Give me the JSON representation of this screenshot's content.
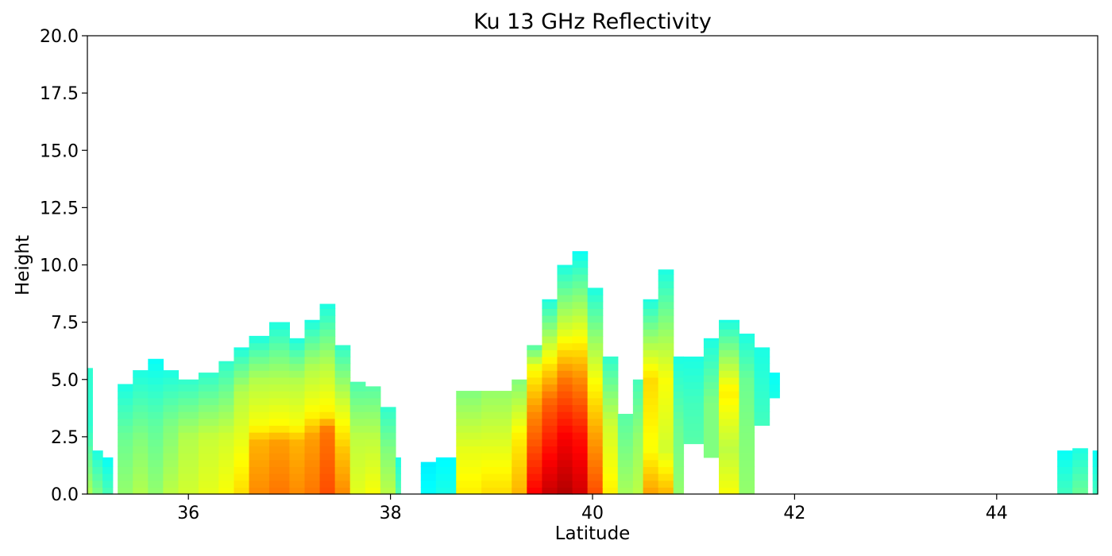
{
  "chart_data": {
    "type": "heatmap",
    "title": "Ku 13 GHz Reflectivity",
    "xlabel": "Latitude",
    "ylabel": "Height",
    "xlim": [
      35.0,
      45.0
    ],
    "ylim": [
      0.0,
      20.0
    ],
    "xticks": [
      36,
      38,
      40,
      42,
      44
    ],
    "xtick_labels": [
      "36",
      "38",
      "40",
      "42",
      "44"
    ],
    "yticks": [
      0.0,
      2.5,
      5.0,
      7.5,
      10.0,
      12.5,
      15.0,
      17.5,
      20.0
    ],
    "ytick_labels": [
      "0.0",
      "2.5",
      "5.0",
      "7.5",
      "10.0",
      "12.5",
      "15.0",
      "17.5",
      "20.0"
    ],
    "colormap": "jet",
    "grid": false,
    "legend": "none",
    "value_scale": "relative intensity 0-1 mapped to jet colormap (no colorbar shown)",
    "echo_columns": [
      {
        "lat_start": 35.0,
        "lat_end": 35.05,
        "top": 5.5,
        "intensity": [
          [
            0,
            0.55
          ],
          [
            1.0,
            0.5
          ],
          [
            3.0,
            0.42
          ]
        ]
      },
      {
        "lat_start": 35.05,
        "lat_end": 35.15,
        "top": 1.9,
        "intensity": [
          [
            0,
            0.5
          ],
          [
            1.9,
            0.4
          ]
        ]
      },
      {
        "lat_start": 35.15,
        "lat_end": 35.25,
        "top": 1.6,
        "intensity": [
          [
            0,
            0.45
          ],
          [
            1.6,
            0.38
          ]
        ]
      },
      {
        "lat_start": 35.3,
        "lat_end": 35.45,
        "top": 4.8,
        "intensity": [
          [
            0,
            0.52
          ],
          [
            2.5,
            0.48
          ],
          [
            4.8,
            0.4
          ]
        ]
      },
      {
        "lat_start": 35.45,
        "lat_end": 35.6,
        "top": 5.4,
        "intensity": [
          [
            0,
            0.55
          ],
          [
            2.5,
            0.5
          ],
          [
            5.4,
            0.4
          ]
        ]
      },
      {
        "lat_start": 35.6,
        "lat_end": 35.75,
        "top": 5.9,
        "intensity": [
          [
            0,
            0.52
          ],
          [
            3.0,
            0.47
          ],
          [
            5.9,
            0.38
          ]
        ]
      },
      {
        "lat_start": 35.75,
        "lat_end": 35.9,
        "top": 5.4,
        "intensity": [
          [
            0,
            0.56
          ],
          [
            3.0,
            0.5
          ],
          [
            5.4,
            0.4
          ]
        ]
      },
      {
        "lat_start": 35.9,
        "lat_end": 36.1,
        "top": 5.0,
        "intensity": [
          [
            0,
            0.58
          ],
          [
            2.5,
            0.55
          ],
          [
            5.0,
            0.42
          ]
        ]
      },
      {
        "lat_start": 36.1,
        "lat_end": 36.3,
        "top": 5.3,
        "intensity": [
          [
            0,
            0.6
          ],
          [
            2.5,
            0.57
          ],
          [
            5.3,
            0.42
          ]
        ]
      },
      {
        "lat_start": 36.3,
        "lat_end": 36.45,
        "top": 5.8,
        "intensity": [
          [
            0,
            0.62
          ],
          [
            2.5,
            0.58
          ],
          [
            5.8,
            0.42
          ]
        ]
      },
      {
        "lat_start": 36.45,
        "lat_end": 36.6,
        "top": 6.4,
        "intensity": [
          [
            0,
            0.66
          ],
          [
            2.5,
            0.6
          ],
          [
            4.5,
            0.55
          ],
          [
            6.4,
            0.4
          ]
        ]
      },
      {
        "lat_start": 36.6,
        "lat_end": 36.8,
        "top": 6.9,
        "intensity": [
          [
            0,
            0.74
          ],
          [
            2.3,
            0.7
          ],
          [
            3.0,
            0.62
          ],
          [
            5.0,
            0.55
          ],
          [
            6.9,
            0.4
          ]
        ]
      },
      {
        "lat_start": 36.8,
        "lat_end": 37.0,
        "top": 7.5,
        "intensity": [
          [
            0,
            0.76
          ],
          [
            2.3,
            0.72
          ],
          [
            3.0,
            0.63
          ],
          [
            5.0,
            0.55
          ],
          [
            7.5,
            0.4
          ]
        ]
      },
      {
        "lat_start": 37.0,
        "lat_end": 37.15,
        "top": 6.8,
        "intensity": [
          [
            0,
            0.74
          ],
          [
            2.3,
            0.7
          ],
          [
            3.0,
            0.62
          ],
          [
            5.0,
            0.55
          ],
          [
            6.8,
            0.4
          ]
        ]
      },
      {
        "lat_start": 37.15,
        "lat_end": 37.3,
        "top": 7.6,
        "intensity": [
          [
            0,
            0.76
          ],
          [
            2.5,
            0.72
          ],
          [
            3.5,
            0.63
          ],
          [
            5.5,
            0.55
          ],
          [
            7.6,
            0.4
          ]
        ]
      },
      {
        "lat_start": 37.3,
        "lat_end": 37.45,
        "top": 8.3,
        "intensity": [
          [
            0,
            0.8
          ],
          [
            2.8,
            0.76
          ],
          [
            3.5,
            0.64
          ],
          [
            5.5,
            0.56
          ],
          [
            8.3,
            0.4
          ]
        ]
      },
      {
        "lat_start": 37.45,
        "lat_end": 37.6,
        "top": 6.5,
        "intensity": [
          [
            0,
            0.74
          ],
          [
            2.0,
            0.68
          ],
          [
            4.0,
            0.58
          ],
          [
            6.5,
            0.42
          ]
        ]
      },
      {
        "lat_start": 37.6,
        "lat_end": 37.75,
        "top": 4.9,
        "intensity": [
          [
            0,
            0.6
          ],
          [
            2.5,
            0.56
          ],
          [
            4.9,
            0.45
          ]
        ]
      },
      {
        "lat_start": 37.75,
        "lat_end": 37.9,
        "top": 4.7,
        "intensity": [
          [
            0,
            0.62
          ],
          [
            2.5,
            0.56
          ],
          [
            4.7,
            0.46
          ]
        ]
      },
      {
        "lat_start": 37.9,
        "lat_end": 38.05,
        "top": 3.8,
        "intensity": [
          [
            0,
            0.56
          ],
          [
            2.0,
            0.5
          ],
          [
            3.8,
            0.42
          ]
        ]
      },
      {
        "lat_start": 38.05,
        "lat_end": 38.1,
        "top": 1.6,
        "intensity": [
          [
            0,
            0.46
          ],
          [
            1.6,
            0.4
          ]
        ]
      },
      {
        "lat_start": 38.3,
        "lat_end": 38.45,
        "top": 1.4,
        "intensity": [
          [
            0,
            0.38
          ],
          [
            1.4,
            0.36
          ]
        ]
      },
      {
        "lat_start": 38.45,
        "lat_end": 38.65,
        "top": 1.6,
        "intensity": [
          [
            0,
            0.4
          ],
          [
            1.6,
            0.37
          ]
        ]
      },
      {
        "lat_start": 38.65,
        "lat_end": 38.9,
        "top": 4.5,
        "intensity": [
          [
            0,
            0.64
          ],
          [
            2.0,
            0.6
          ],
          [
            4.5,
            0.5
          ]
        ]
      },
      {
        "lat_start": 38.9,
        "lat_end": 39.2,
        "top": 4.5,
        "intensity": [
          [
            0,
            0.66
          ],
          [
            2.0,
            0.6
          ],
          [
            4.5,
            0.52
          ]
        ]
      },
      {
        "lat_start": 39.2,
        "lat_end": 39.35,
        "top": 5.0,
        "intensity": [
          [
            0,
            0.7
          ],
          [
            2.5,
            0.64
          ],
          [
            5.0,
            0.5
          ]
        ]
      },
      {
        "lat_start": 39.35,
        "lat_end": 39.5,
        "top": 6.5,
        "intensity": [
          [
            0,
            0.88
          ],
          [
            1.5,
            0.82
          ],
          [
            3.5,
            0.74
          ],
          [
            5.5,
            0.62
          ],
          [
            6.5,
            0.45
          ]
        ]
      },
      {
        "lat_start": 39.5,
        "lat_end": 39.65,
        "top": 8.5,
        "intensity": [
          [
            0,
            0.93
          ],
          [
            2.0,
            0.86
          ],
          [
            4.0,
            0.78
          ],
          [
            6.0,
            0.62
          ],
          [
            8.5,
            0.4
          ]
        ]
      },
      {
        "lat_start": 39.65,
        "lat_end": 39.8,
        "top": 10.0,
        "intensity": [
          [
            0,
            0.95
          ],
          [
            2.5,
            0.88
          ],
          [
            5.0,
            0.76
          ],
          [
            7.0,
            0.6
          ],
          [
            10.0,
            0.4
          ]
        ]
      },
      {
        "lat_start": 39.8,
        "lat_end": 39.95,
        "top": 10.6,
        "intensity": [
          [
            0,
            0.92
          ],
          [
            2.5,
            0.86
          ],
          [
            5.0,
            0.74
          ],
          [
            7.5,
            0.58
          ],
          [
            10.6,
            0.38
          ]
        ]
      },
      {
        "lat_start": 39.95,
        "lat_end": 40.1,
        "top": 9.0,
        "intensity": [
          [
            0,
            0.8
          ],
          [
            2.5,
            0.72
          ],
          [
            5.0,
            0.62
          ],
          [
            9.0,
            0.4
          ]
        ]
      },
      {
        "lat_start": 40.1,
        "lat_end": 40.25,
        "top": 6.0,
        "intensity": [
          [
            0,
            0.64
          ],
          [
            3.0,
            0.58
          ],
          [
            6.0,
            0.42
          ]
        ]
      },
      {
        "lat_start": 40.25,
        "lat_end": 40.4,
        "top": 3.5,
        "intensity": [
          [
            0,
            0.54
          ],
          [
            3.5,
            0.46
          ]
        ]
      },
      {
        "lat_start": 40.4,
        "lat_end": 40.5,
        "top": 5.0,
        "intensity": [
          [
            0,
            0.56
          ],
          [
            2.5,
            0.52
          ],
          [
            5.0,
            0.44
          ]
        ]
      },
      {
        "lat_start": 40.5,
        "lat_end": 40.65,
        "top": 8.5,
        "intensity": [
          [
            0,
            0.72
          ],
          [
            2.0,
            0.62
          ],
          [
            5.0,
            0.66
          ],
          [
            8.5,
            0.4
          ]
        ]
      },
      {
        "lat_start": 40.65,
        "lat_end": 40.8,
        "top": 9.8,
        "intensity": [
          [
            0,
            0.7
          ],
          [
            2.0,
            0.58
          ],
          [
            5.0,
            0.62
          ],
          [
            9.8,
            0.4
          ]
        ]
      },
      {
        "lat_start": 40.8,
        "lat_end": 40.9,
        "top": 6.0,
        "intensity": [
          [
            0,
            0.52
          ],
          [
            3.0,
            0.48
          ],
          [
            6.0,
            0.4
          ]
        ]
      },
      {
        "lat_start": 40.9,
        "lat_end": 41.1,
        "top": 6.0,
        "bottom": 2.2,
        "intensity": [
          [
            2.2,
            0.46
          ],
          [
            4.0,
            0.44
          ],
          [
            6.0,
            0.4
          ]
        ]
      },
      {
        "lat_start": 41.1,
        "lat_end": 41.25,
        "top": 6.8,
        "bottom": 1.6,
        "intensity": [
          [
            1.6,
            0.5
          ],
          [
            4.0,
            0.5
          ],
          [
            6.8,
            0.4
          ]
        ]
      },
      {
        "lat_start": 41.25,
        "lat_end": 41.45,
        "top": 7.6,
        "intensity": [
          [
            0,
            0.62
          ],
          [
            2.0,
            0.56
          ],
          [
            4.5,
            0.64
          ],
          [
            7.6,
            0.4
          ]
        ]
      },
      {
        "lat_start": 41.45,
        "lat_end": 41.6,
        "top": 7.0,
        "intensity": [
          [
            0,
            0.52
          ],
          [
            3.0,
            0.5
          ],
          [
            5.0,
            0.48
          ],
          [
            7.0,
            0.4
          ]
        ]
      },
      {
        "lat_start": 41.6,
        "lat_end": 41.75,
        "top": 6.4,
        "bottom": 3.0,
        "intensity": [
          [
            3.0,
            0.44
          ],
          [
            6.4,
            0.4
          ]
        ]
      },
      {
        "lat_start": 41.75,
        "lat_end": 41.85,
        "top": 5.3,
        "bottom": 4.2,
        "intensity": [
          [
            4.2,
            0.4
          ],
          [
            5.3,
            0.38
          ]
        ]
      },
      {
        "lat_start": 44.6,
        "lat_end": 44.75,
        "top": 1.9,
        "intensity": [
          [
            0,
            0.44
          ],
          [
            1.9,
            0.38
          ]
        ]
      },
      {
        "lat_start": 44.75,
        "lat_end": 44.9,
        "top": 2.0,
        "intensity": [
          [
            0,
            0.48
          ],
          [
            2.0,
            0.4
          ]
        ]
      },
      {
        "lat_start": 44.95,
        "lat_end": 45.0,
        "top": 1.9,
        "intensity": [
          [
            0,
            0.44
          ],
          [
            1.9,
            0.38
          ]
        ]
      }
    ]
  }
}
